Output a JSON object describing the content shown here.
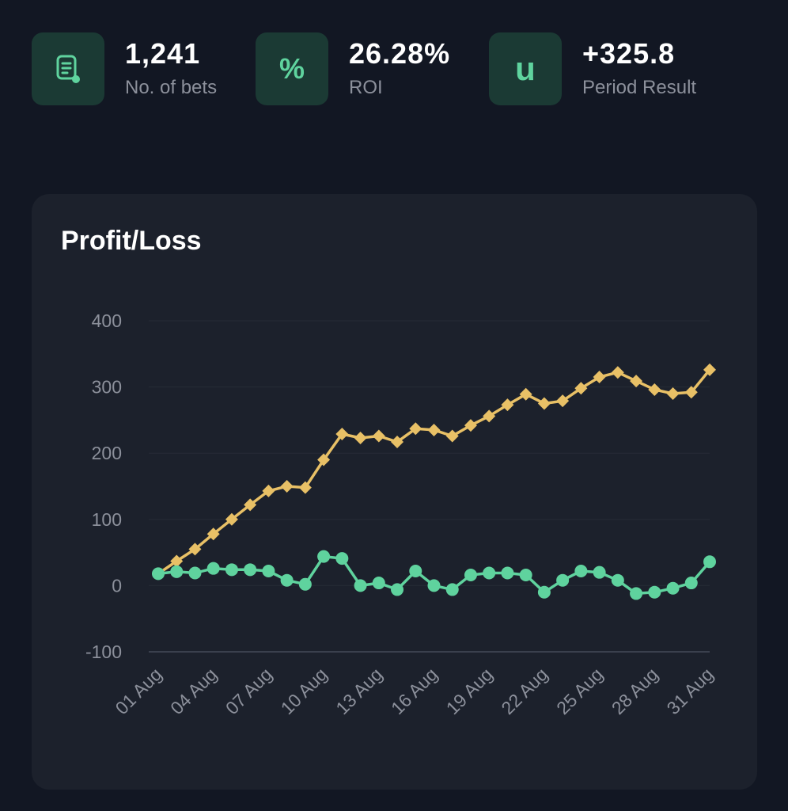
{
  "stats": [
    {
      "id": "bets",
      "value": "1,241",
      "label": "No. of bets",
      "icon": "document-list-icon"
    },
    {
      "id": "roi",
      "value": "26.28%",
      "label": "ROI",
      "icon": "percent-icon",
      "glyph": "%"
    },
    {
      "id": "result",
      "value": "+325.8",
      "label": "Period Result",
      "icon": "units-icon",
      "glyph": "u"
    }
  ],
  "colors": {
    "accent": "#5fd39e",
    "gold": "#e8c066",
    "background": "#121723",
    "card": "#1c212c"
  },
  "chart_data": {
    "type": "line",
    "title": "Profit/Loss",
    "xlabel": "",
    "ylabel": "",
    "ylim": [
      -100,
      400
    ],
    "yticks": [
      400,
      300,
      200,
      100,
      0,
      -100
    ],
    "grid": true,
    "x": [
      "01 Aug",
      "02 Aug",
      "03 Aug",
      "04 Aug",
      "05 Aug",
      "06 Aug",
      "07 Aug",
      "08 Aug",
      "09 Aug",
      "10 Aug",
      "11 Aug",
      "12 Aug",
      "13 Aug",
      "14 Aug",
      "15 Aug",
      "16 Aug",
      "17 Aug",
      "18 Aug",
      "19 Aug",
      "20 Aug",
      "21 Aug",
      "22 Aug",
      "23 Aug",
      "24 Aug",
      "25 Aug",
      "26 Aug",
      "27 Aug",
      "28 Aug",
      "29 Aug",
      "30 Aug",
      "31 Aug"
    ],
    "xtick_labels": [
      "01 Aug",
      "04 Aug",
      "07 Aug",
      "10 Aug",
      "13 Aug",
      "16 Aug",
      "19 Aug",
      "22 Aug",
      "25 Aug",
      "28 Aug",
      "31 Aug"
    ],
    "series": [
      {
        "color": "#e8c066",
        "marker": "diamond",
        "values": [
          18,
          37,
          55,
          78,
          100,
          122,
          143,
          150,
          148,
          190,
          229,
          223,
          226,
          217,
          237,
          235,
          226,
          242,
          256,
          273,
          289,
          275,
          279,
          298,
          315,
          322,
          309,
          296,
          290,
          292,
          326
        ]
      },
      {
        "color": "#5fd39e",
        "marker": "circle",
        "values": [
          18,
          21,
          19,
          26,
          24,
          24,
          22,
          8,
          2,
          44,
          41,
          0,
          4,
          -6,
          22,
          0,
          -6,
          16,
          19,
          19,
          16,
          -10,
          8,
          22,
          20,
          8,
          -12,
          -10,
          -4,
          4,
          36
        ]
      }
    ]
  }
}
